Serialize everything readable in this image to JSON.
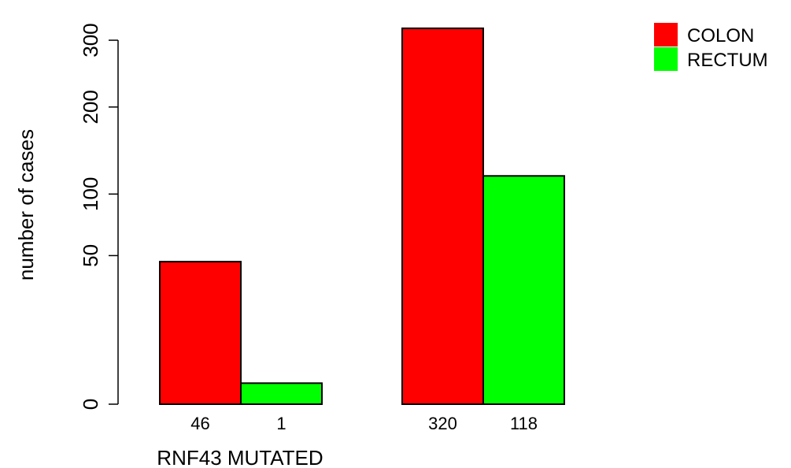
{
  "chart_data": {
    "type": "bar",
    "xlabel": "RNF43 MUTATED",
    "ylabel": "number of cases",
    "yticks": [
      0,
      50,
      100,
      200,
      300
    ],
    "yaxis_scale": "sqrt",
    "ylim": [
      0,
      320
    ],
    "groups": [
      {
        "bars": [
          {
            "series": "COLON",
            "value": 46,
            "label": "46"
          },
          {
            "series": "RECTUM",
            "value": 1,
            "label": "1"
          }
        ]
      },
      {
        "bars": [
          {
            "series": "COLON",
            "value": 320,
            "label": "320"
          },
          {
            "series": "RECTUM",
            "value": 118,
            "label": "118"
          }
        ]
      }
    ],
    "series": [
      {
        "name": "COLON",
        "color": "#ff0000"
      },
      {
        "name": "RECTUM",
        "color": "#00ff00"
      }
    ],
    "legend": {
      "position": "top-right"
    },
    "grid": false
  }
}
